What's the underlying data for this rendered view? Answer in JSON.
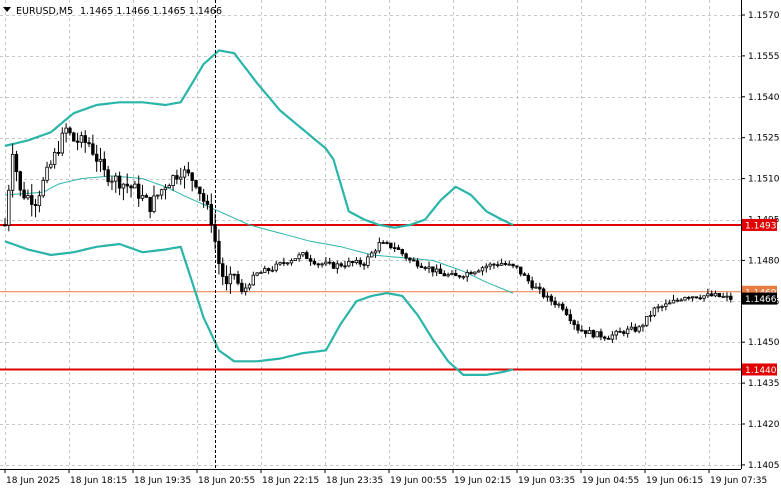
{
  "header": {
    "symbol": "EURUSD,M5",
    "ohlc": "1.1465 1.1466 1.1465 1.1466"
  },
  "colors": {
    "background": "#ffffff",
    "grid": "#c8c8c8",
    "bollinger": "#2ab5a8",
    "moving_average": "#2ab5a8",
    "support_resistance": "#e00000",
    "bid_line": "#e87b40",
    "candle": "#000000"
  },
  "chart_data": {
    "type": "candlestick",
    "title": "EURUSD,M5",
    "grid": true,
    "ylim": [
      1.14035,
      1.15755
    ],
    "x_tick_labels": [
      "18 Jun 2025",
      "18 Jun 18:15",
      "18 Jun 19:35",
      "18 Jun 20:55",
      "18 Jun 22:15",
      "18 Jun 23:35",
      "19 Jun 00:55",
      "19 Jun 02:15",
      "19 Jun 03:35",
      "19 Jun 04:55",
      "19 Jun 06:15",
      "19 Jun 07:35"
    ],
    "y_ticks": [
      1.157,
      1.1555,
      1.154,
      1.1525,
      1.151,
      1.1495,
      1.148,
      1.1465,
      1.145,
      1.1435,
      1.142,
      1.1405
    ],
    "y_tick_labels": [
      "1.1570",
      "1.1555",
      "1.1540",
      "1.1525",
      "1.1510",
      "1.1495",
      "1.1480",
      "1.1465",
      "1.1450",
      "1.1435",
      "1.1420",
      "1.1405"
    ],
    "horizontal_levels": [
      {
        "label": "1.1493",
        "value": 1.1493,
        "style": "support_resistance"
      },
      {
        "label": "1.1440",
        "value": 1.144,
        "style": "support_resistance"
      },
      {
        "label": "1.1469",
        "value": 1.14685,
        "style": "bid_line"
      }
    ],
    "current_price_label": "1.1466",
    "current_price": 1.1466,
    "vertical_marker_index": 55,
    "close_path": [
      [
        0,
        1.1493
      ],
      [
        2,
        1.1521
      ],
      [
        4,
        1.1505
      ],
      [
        8,
        1.1502
      ],
      [
        12,
        1.1515
      ],
      [
        16,
        1.1528
      ],
      [
        18,
        1.1524
      ],
      [
        22,
        1.1523
      ],
      [
        26,
        1.1512
      ],
      [
        30,
        1.1509
      ],
      [
        34,
        1.1506
      ],
      [
        38,
        1.15
      ],
      [
        42,
        1.1508
      ],
      [
        46,
        1.1513
      ],
      [
        50,
        1.1509
      ],
      [
        54,
        1.1495
      ],
      [
        56,
        1.1479
      ],
      [
        58,
        1.147
      ],
      [
        60,
        1.1475
      ],
      [
        62,
        1.1468
      ],
      [
        64,
        1.1472
      ],
      [
        66,
        1.1475
      ],
      [
        70,
        1.1477
      ],
      [
        74,
        1.148
      ],
      [
        78,
        1.1482
      ],
      [
        82,
        1.1479
      ],
      [
        86,
        1.1478
      ],
      [
        90,
        1.1479
      ],
      [
        94,
        1.1479
      ],
      [
        98,
        1.1486
      ],
      [
        102,
        1.1485
      ],
      [
        106,
        1.148
      ],
      [
        110,
        1.1478
      ],
      [
        114,
        1.1475
      ],
      [
        118,
        1.1474
      ],
      [
        122,
        1.1476
      ],
      [
        126,
        1.1478
      ],
      [
        130,
        1.1479
      ],
      [
        134,
        1.1477
      ],
      [
        138,
        1.1471
      ],
      [
        142,
        1.1466
      ],
      [
        146,
        1.1463
      ],
      [
        150,
        1.1455
      ],
      [
        154,
        1.1453
      ],
      [
        158,
        1.1452
      ],
      [
        162,
        1.1454
      ],
      [
        166,
        1.1455
      ],
      [
        170,
        1.1462
      ],
      [
        174,
        1.1464
      ],
      [
        178,
        1.1467
      ],
      [
        182,
        1.1467
      ],
      [
        186,
        1.1467
      ],
      [
        190,
        1.1466
      ]
    ],
    "bollinger_upper": [
      [
        0,
        1.1522
      ],
      [
        6,
        1.1524
      ],
      [
        12,
        1.1527
      ],
      [
        18,
        1.1534
      ],
      [
        24,
        1.1537
      ],
      [
        30,
        1.1538
      ],
      [
        36,
        1.1538
      ],
      [
        42,
        1.1537
      ],
      [
        46,
        1.1538
      ],
      [
        52,
        1.1552
      ],
      [
        56,
        1.1557
      ],
      [
        60,
        1.1556
      ],
      [
        66,
        1.1545
      ],
      [
        72,
        1.1535
      ],
      [
        78,
        1.1528
      ],
      [
        84,
        1.1521
      ],
      [
        86,
        1.1517
      ],
      [
        90,
        1.1498
      ],
      [
        94,
        1.1495
      ],
      [
        98,
        1.1493
      ],
      [
        102,
        1.1492
      ],
      [
        106,
        1.1493
      ],
      [
        110,
        1.1495
      ],
      [
        114,
        1.1502
      ],
      [
        118,
        1.1507
      ],
      [
        122,
        1.1504
      ],
      [
        126,
        1.1498
      ],
      [
        130,
        1.1495
      ],
      [
        133,
        1.1493
      ]
    ],
    "bollinger_middle": [
      [
        0,
        1.1504
      ],
      [
        10,
        1.1505
      ],
      [
        14,
        1.1508
      ],
      [
        20,
        1.151
      ],
      [
        28,
        1.1511
      ],
      [
        36,
        1.151
      ],
      [
        42,
        1.1507
      ],
      [
        48,
        1.1503
      ],
      [
        56,
        1.1498
      ],
      [
        64,
        1.1493
      ],
      [
        72,
        1.149
      ],
      [
        80,
        1.1487
      ],
      [
        88,
        1.1485
      ],
      [
        96,
        1.1482
      ],
      [
        104,
        1.1481
      ],
      [
        112,
        1.148
      ],
      [
        120,
        1.1476
      ],
      [
        126,
        1.1472
      ],
      [
        133,
        1.1468
      ]
    ],
    "bollinger_lower": [
      [
        0,
        1.1487
      ],
      [
        6,
        1.1484
      ],
      [
        12,
        1.1482
      ],
      [
        18,
        1.1483
      ],
      [
        24,
        1.1485
      ],
      [
        30,
        1.1486
      ],
      [
        36,
        1.1483
      ],
      [
        42,
        1.1484
      ],
      [
        46,
        1.1485
      ],
      [
        52,
        1.1459
      ],
      [
        56,
        1.1447
      ],
      [
        60,
        1.1443
      ],
      [
        66,
        1.1443
      ],
      [
        72,
        1.1444
      ],
      [
        78,
        1.1446
      ],
      [
        84,
        1.1447
      ],
      [
        88,
        1.1457
      ],
      [
        92,
        1.1465
      ],
      [
        96,
        1.1467
      ],
      [
        100,
        1.1468
      ],
      [
        104,
        1.1467
      ],
      [
        108,
        1.146
      ],
      [
        112,
        1.1451
      ],
      [
        116,
        1.1443
      ],
      [
        120,
        1.1438
      ],
      [
        126,
        1.1438
      ],
      [
        130,
        1.1439
      ],
      [
        133,
        1.144
      ]
    ]
  }
}
